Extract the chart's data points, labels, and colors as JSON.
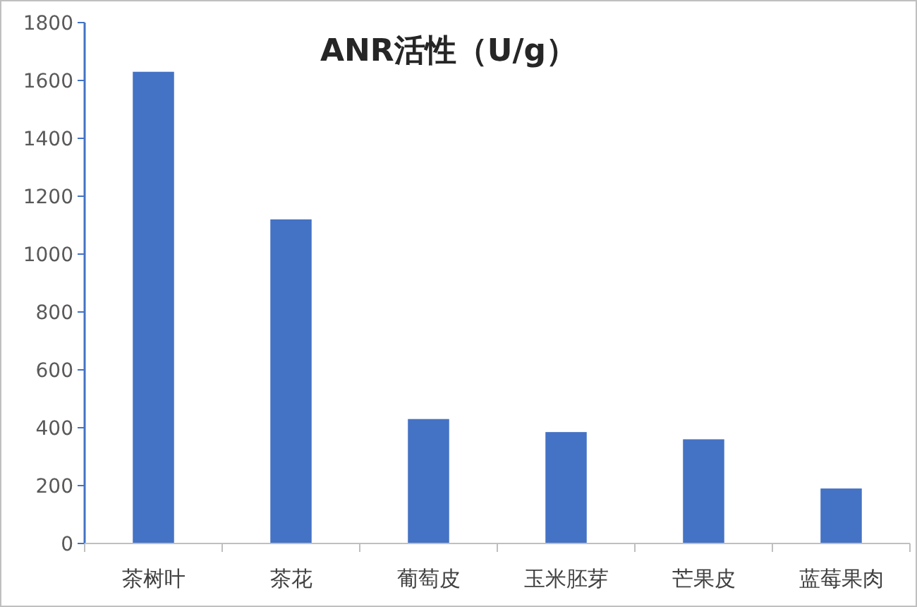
{
  "chart_data": {
    "type": "bar",
    "title": "ANR活性（U/g）",
    "categories": [
      "茶树叶",
      "茶花",
      "葡萄皮",
      "玉米胚芽",
      "芒果皮",
      "蓝莓果肉"
    ],
    "series": [
      {
        "color": "#4472c4",
        "values": [
          1630,
          1120,
          430,
          385,
          360,
          190
        ]
      }
    ],
    "ylim": [
      0,
      1800
    ],
    "yticks": [
      0,
      200,
      400,
      600,
      800,
      1000,
      1200,
      1400,
      1600,
      1800
    ],
    "grid": false
  }
}
